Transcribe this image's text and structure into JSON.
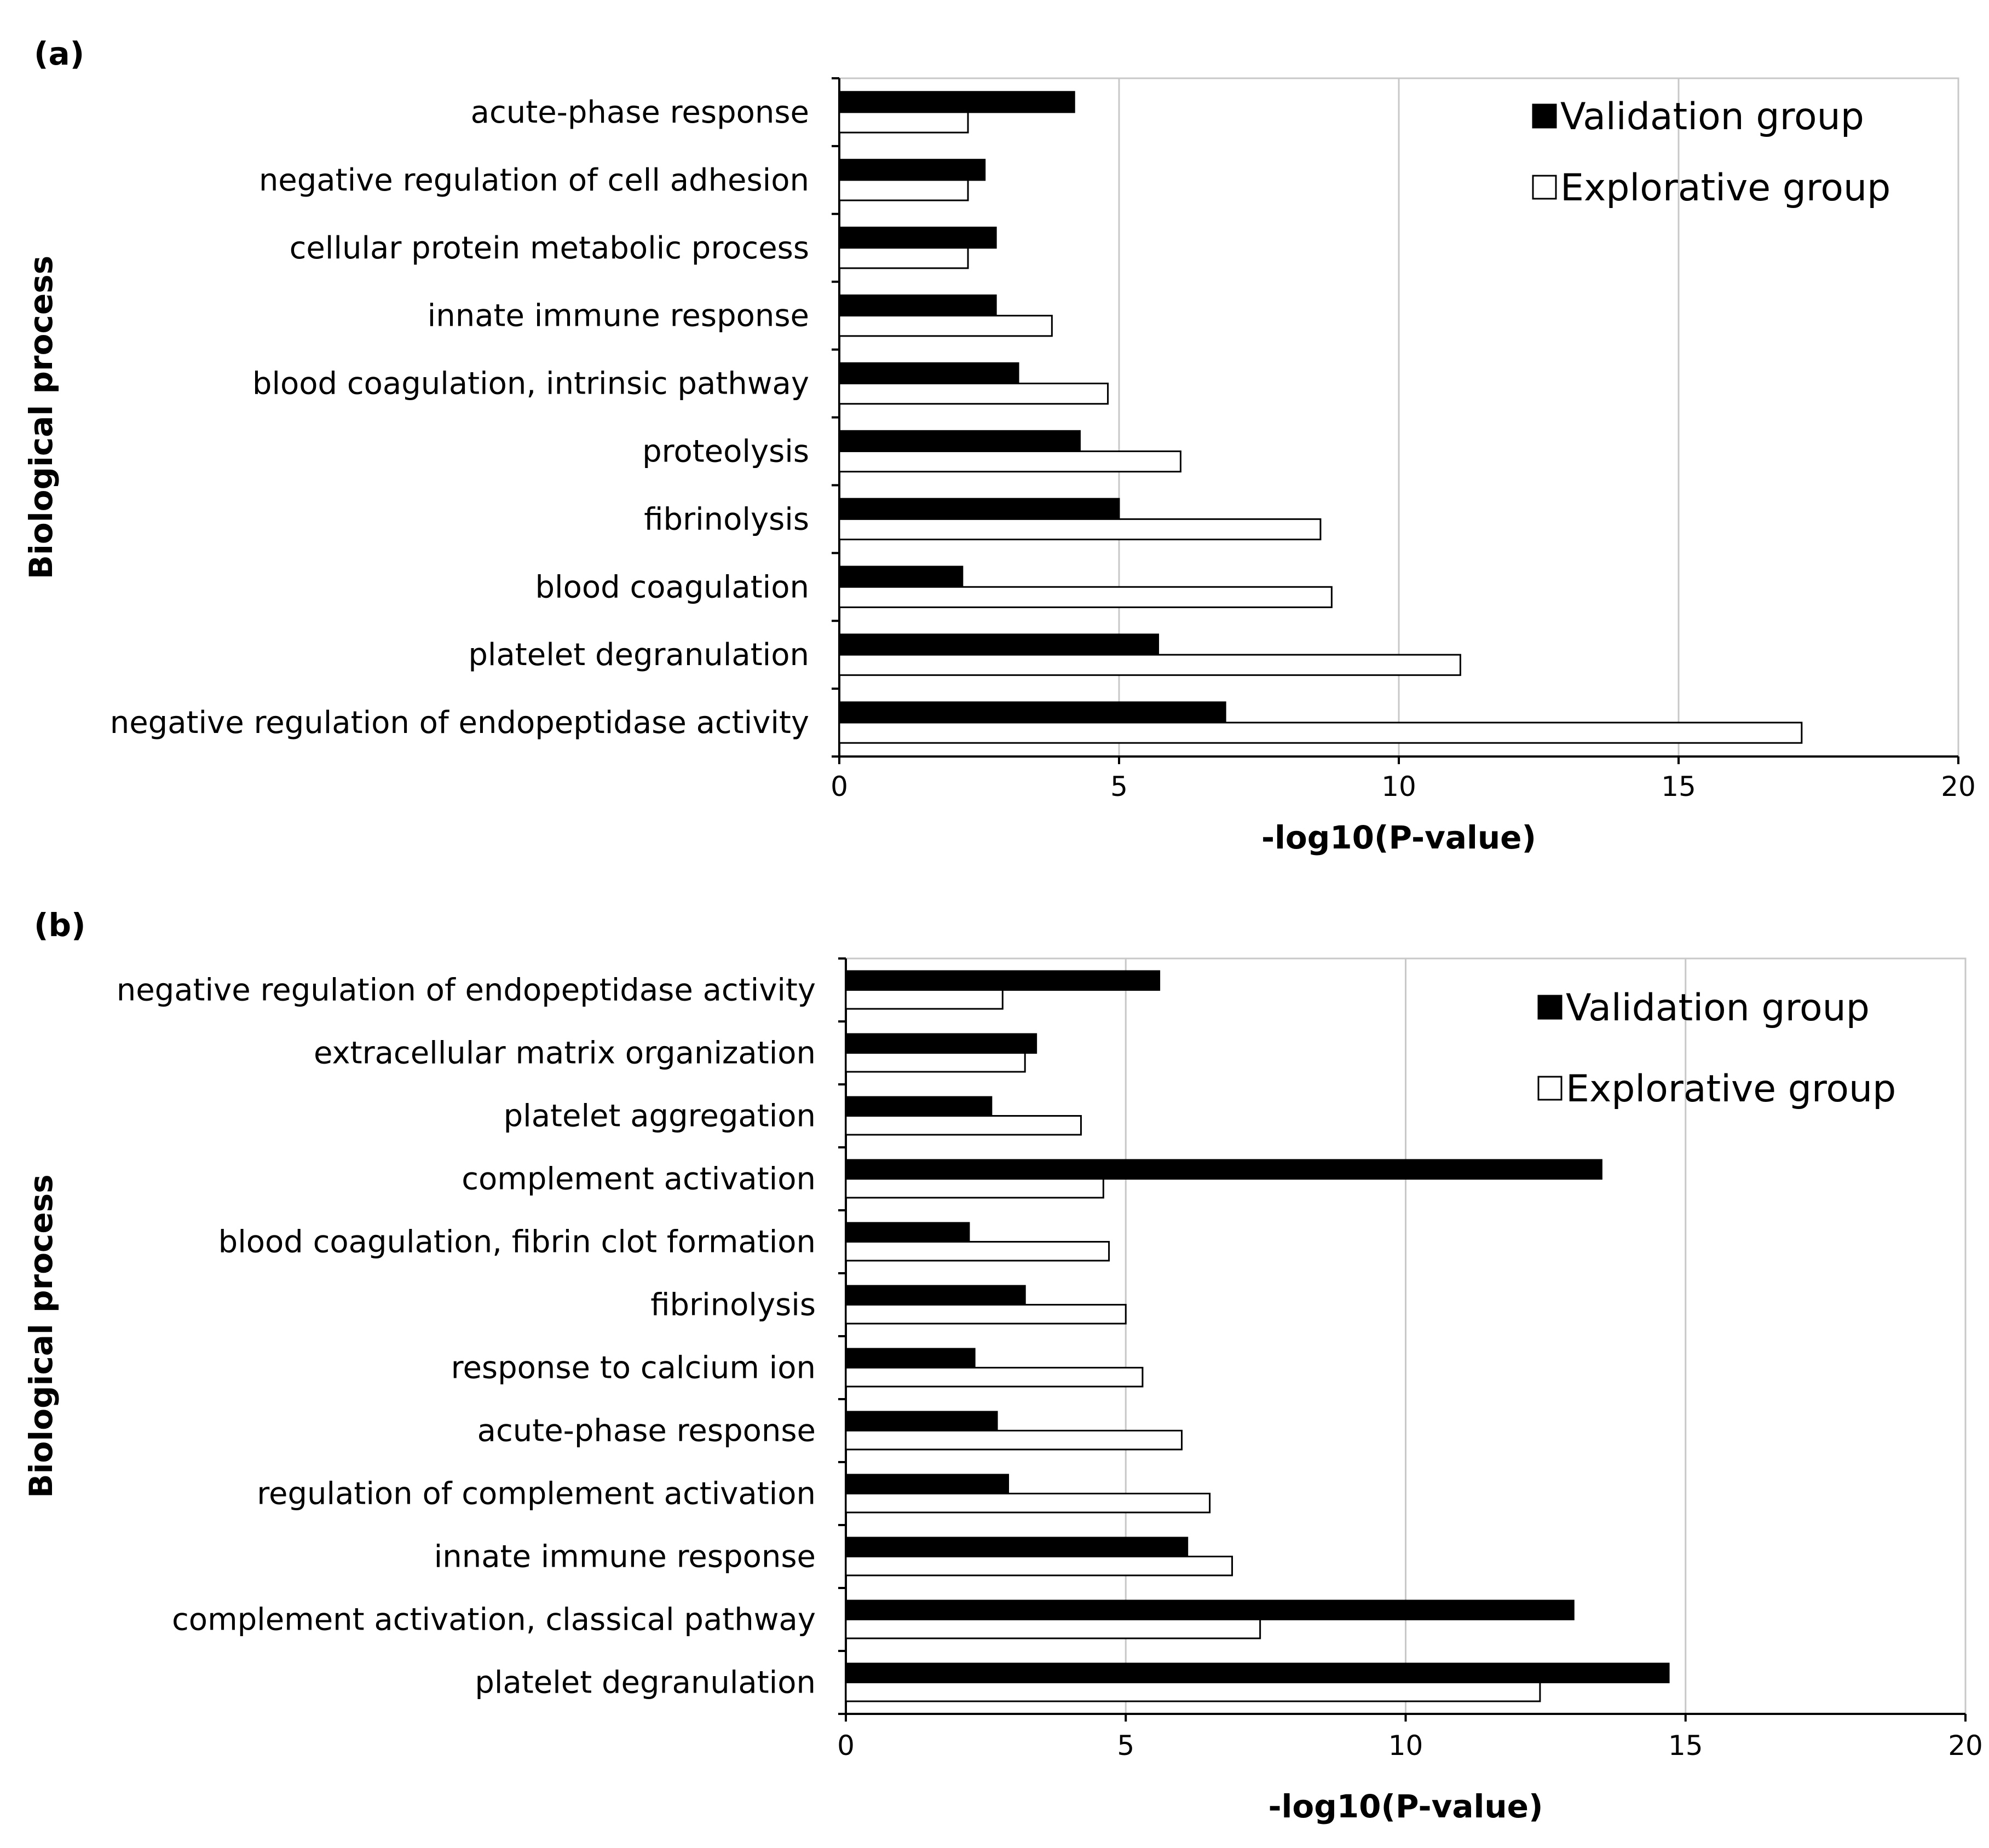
{
  "chart_data": [
    {
      "type": "bar",
      "orientation": "horizontal",
      "panel_label": "(a)",
      "xlabel": "-log10(P-value)",
      "ylabel": "Biological process",
      "xlim": [
        0,
        20
      ],
      "xticks": [
        "0",
        "5",
        "10",
        "15",
        "20"
      ],
      "grid": "vertical major gridlines",
      "legend": "top-right",
      "categories": [
        "acute-phase response",
        "negative regulation of cell adhesion",
        "cellular protein metabolic process",
        "innate immune response",
        "blood coagulation, intrinsic pathway",
        "proteolysis",
        "fibrinolysis",
        "blood coagulation",
        "platelet degranulation",
        "negative regulation of endopeptidase activity"
      ],
      "series": [
        {
          "name": "Validation group",
          "color": "#000000",
          "values": [
            4.2,
            2.6,
            2.8,
            2.8,
            3.2,
            4.3,
            5.0,
            2.2,
            5.7,
            6.9
          ]
        },
        {
          "name": "Explorative group",
          "color": "#ffffff",
          "values": [
            2.3,
            2.3,
            2.3,
            3.8,
            4.8,
            6.1,
            8.6,
            8.8,
            11.1,
            17.2
          ]
        }
      ]
    },
    {
      "type": "bar",
      "orientation": "horizontal",
      "panel_label": "(b)",
      "xlabel": "-log10(P-value)",
      "ylabel": "Biological process",
      "xlim": [
        0,
        20
      ],
      "xticks": [
        "0",
        "5",
        "10",
        "15",
        "20"
      ],
      "grid": "vertical major gridlines",
      "legend": "top-right",
      "categories": [
        "negative regulation of endopeptidase activity",
        "extracellular matrix organization",
        "platelet aggregation",
        "complement activation",
        "blood coagulation, fibrin clot formation",
        "fibrinolysis",
        "response to calcium ion",
        "acute-phase response",
        "regulation of complement activation",
        "innate immune response",
        "complement activation, classical pathway",
        "platelet degranulation"
      ],
      "series": [
        {
          "name": "Validation group",
          "color": "#000000",
          "values": [
            5.6,
            3.4,
            2.6,
            13.5,
            2.2,
            3.2,
            2.3,
            2.7,
            2.9,
            6.1,
            13.0,
            14.7
          ]
        },
        {
          "name": "Explorative group",
          "color": "#ffffff",
          "values": [
            2.8,
            3.2,
            4.2,
            4.6,
            4.7,
            5.0,
            5.3,
            6.0,
            6.5,
            6.9,
            7.4,
            12.4
          ]
        }
      ]
    }
  ]
}
